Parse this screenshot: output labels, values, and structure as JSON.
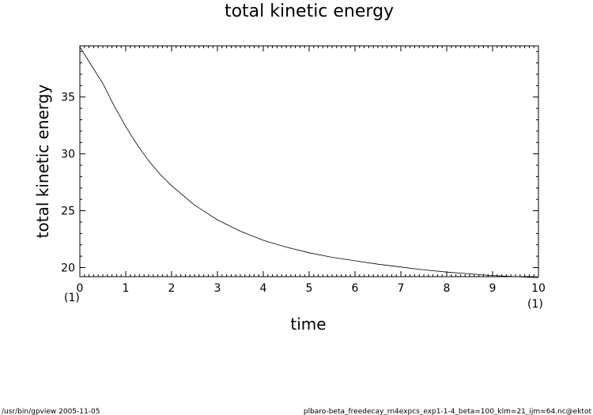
{
  "chart_data": {
    "type": "line",
    "title": "total kinetic energy",
    "xlabel": "time",
    "ylabel": "total kinetic energy",
    "xlim": [
      0,
      10
    ],
    "ylim": [
      19.2,
      39.5
    ],
    "x_ticks": [
      0,
      1,
      2,
      3,
      4,
      5,
      6,
      7,
      8,
      9,
      10
    ],
    "y_ticks": [
      20,
      25,
      30,
      35
    ],
    "x_unit_left": "(1)",
    "x_unit_right": "(1)",
    "grid": false,
    "series": [
      {
        "x": [
          0,
          0.25,
          0.5,
          0.75,
          1,
          1.25,
          1.5,
          1.75,
          2,
          2.5,
          3,
          3.5,
          4,
          4.5,
          5,
          5.5,
          6,
          6.5,
          7,
          7.5,
          8,
          8.5,
          9,
          9.5,
          10
        ],
        "y": [
          39.4,
          37.8,
          36.2,
          34.2,
          32.4,
          30.8,
          29.4,
          28.2,
          27.2,
          25.5,
          24.2,
          23.2,
          22.4,
          21.8,
          21.3,
          20.9,
          20.6,
          20.3,
          20.05,
          19.8,
          19.6,
          19.45,
          19.3,
          19.2,
          19.1
        ]
      }
    ]
  },
  "footer": {
    "left": "/usr/bin/gpview   2005-11-05",
    "right": "plbaro-beta_freedecay_rn4expcs_exp1-1-4_beta=100_klm=21_ijm=64.nc@ektot"
  }
}
